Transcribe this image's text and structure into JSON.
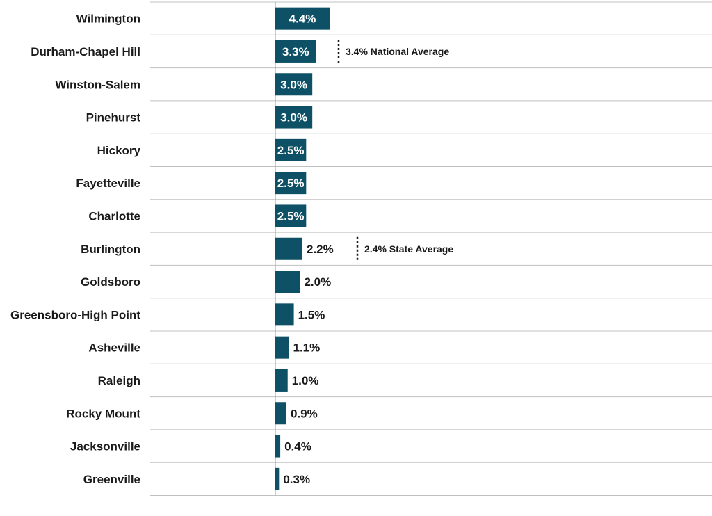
{
  "chart_data": {
    "type": "bar",
    "orientation": "horizontal",
    "categories": [
      "Wilmington",
      "Durham-Chapel Hill",
      "Winston-Salem",
      "Pinehurst",
      "Hickory",
      "Fayetteville",
      "Charlotte",
      "Burlington",
      "Goldsboro",
      "Greensboro-High Point",
      "Asheville",
      "Raleigh",
      "Rocky Mount",
      "Jacksonville",
      "Greenville"
    ],
    "values": [
      4.4,
      3.3,
      3.0,
      3.0,
      2.5,
      2.5,
      2.5,
      2.2,
      2.0,
      1.5,
      1.1,
      1.0,
      0.9,
      0.4,
      0.3
    ],
    "value_labels": [
      "4.4%",
      "3.3%",
      "3.0%",
      "3.0%",
      "2.5%",
      "2.5%",
      "2.5%",
      "2.2%",
      "2.0%",
      "1.5%",
      "1.1%",
      "1.0%",
      "0.9%",
      "0.4%",
      "0.3%"
    ],
    "reference_lines": [
      {
        "label": "3.4% National Average",
        "value": 3.4,
        "category": "Durham-Chapel Hill"
      },
      {
        "label": "2.4% State Average",
        "value": 2.4,
        "category": "Burlington"
      }
    ],
    "title": "",
    "xlabel": "",
    "ylabel": "",
    "xlim": [
      0,
      4.4
    ],
    "grid": true,
    "legend": "none",
    "colors": {
      "bar": "#0e5167",
      "label_inside": "#ffffff",
      "label_outside": "#1a1a1a",
      "grid": "#c0c0c0"
    }
  }
}
